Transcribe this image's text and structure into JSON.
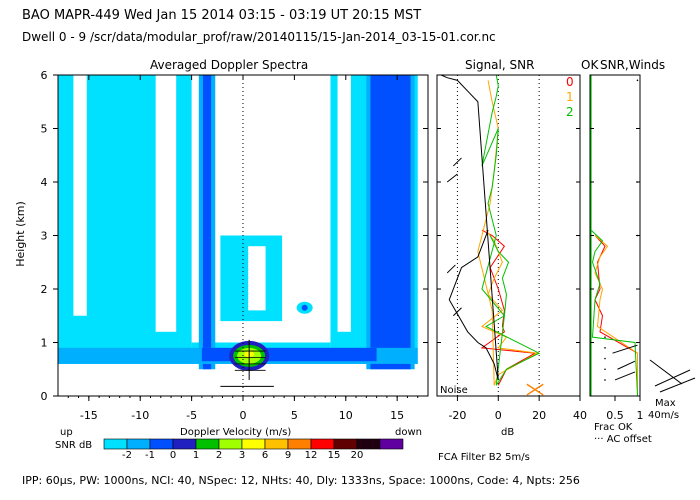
{
  "header": {
    "line1": "BAO  MAPR-449  Wed Jan 15 2014 03:15 - 03:19 UT 20:15 MST",
    "line2": "Dwell  0 - 9   /scr/data/modular_prof/raw/20140115/15-Jan-2014_03-15-01.cor.nc"
  },
  "footer": {
    "params": "IPP: 60μs,  PW: 1000ns,  NCI: 40,  NSpec: 12, NHts: 40,  Dly: 1333ns,  Space: 1000ns,  Code: 4,  Npts: 256"
  },
  "chart_data": [
    {
      "type": "heatmap",
      "title": "Averaged Doppler Spectra",
      "xlabel": "Doppler Velocity (m/s)",
      "ylabel": "Height (km)",
      "xlim": [
        -18,
        18
      ],
      "ylim": [
        0,
        6
      ],
      "xticks": [
        "-15",
        "-10",
        "-5",
        "0",
        "5",
        "10",
        "15"
      ],
      "yticks": [
        "0",
        "1",
        "2",
        "3",
        "4",
        "5",
        "6"
      ],
      "x_left_label": "up",
      "x_right_label": "down",
      "colorbar": {
        "label": "SNR dB",
        "labels": [
          "-2",
          "-1",
          "0",
          "1",
          "2",
          "3",
          "6",
          "9",
          "12",
          "15",
          "20"
        ],
        "colors": [
          "#00e0ff",
          "#00b0ff",
          "#0050ff",
          "#2020c0",
          "#00c000",
          "#a0ff00",
          "#ffff00",
          "#ffc000",
          "#ff8000",
          "#ff0000",
          "#600000",
          "#200010",
          "#6000a0"
        ]
      },
      "regions": [
        {
          "name": "clutter-band-left",
          "x0": -4.3,
          "x1": -2.7,
          "y0": 0.5,
          "y1": 6.0
        },
        {
          "name": "clutter-band-right",
          "x0": 12.0,
          "x1": 16.7,
          "y0": 0.5,
          "y1": 6.0
        },
        {
          "name": "low-level-echo",
          "x0": -18.0,
          "x1": 17.0,
          "y0": 0.6,
          "y1": 1.0
        },
        {
          "name": "peak-core",
          "x0": -1.2,
          "x1": 2.4,
          "y0": 0.5,
          "y1": 1.0
        }
      ]
    },
    {
      "type": "line",
      "title": "Signal, SNR",
      "xlabel": "dB",
      "xlim": [
        -30,
        40
      ],
      "ylim": [
        0,
        6
      ],
      "xticks": [
        "-20",
        "0",
        "20",
        "40"
      ],
      "noise_label": "Noise",
      "series": [
        {
          "name": "0",
          "color": "#ff0000",
          "x": [
            -8,
            -3,
            3,
            -4,
            0,
            3,
            2,
            3,
            -8,
            18,
            4,
            0
          ],
          "y": [
            3.1,
            3.0,
            2.8,
            2.4,
            2.0,
            1.6,
            1.3,
            1.2,
            0.9,
            0.8,
            0.5,
            0.2
          ]
        },
        {
          "name": "1",
          "color": "#ffa500",
          "x": [
            -6,
            -2,
            2,
            -2,
            -5,
            2,
            -8,
            4,
            0,
            19,
            0,
            -2,
            -3,
            -10,
            -4,
            -2,
            0,
            -3,
            -5
          ],
          "y": [
            3.1,
            2.9,
            2.5,
            2.2,
            1.9,
            1.6,
            1.3,
            1.1,
            0.9,
            0.8,
            0.4,
            0.2,
            1.6,
            2.7,
            3.6,
            4.2,
            5.0,
            5.5,
            5.9
          ]
        },
        {
          "name": "2",
          "color": "#00c000",
          "x": [
            -4,
            0,
            5,
            2,
            4,
            3,
            -6,
            20,
            4,
            -1,
            3,
            -8,
            -1,
            -5,
            -3,
            -1,
            0,
            -8,
            -3,
            -1,
            0,
            -1
          ],
          "y": [
            3.0,
            2.7,
            2.5,
            2.2,
            1.9,
            1.5,
            1.3,
            0.8,
            0.5,
            0.2,
            1.5,
            2.0,
            3.0,
            3.6,
            3.9,
            4.5,
            5.0,
            4.3,
            5.3,
            5.6,
            5.8,
            6.0
          ]
        },
        {
          "name": "signal",
          "color": "#000000",
          "x": [
            -5,
            -10,
            -18,
            -24,
            -15,
            -10,
            -6,
            -2,
            0,
            -10,
            -15,
            -20,
            -25,
            -28
          ],
          "y": [
            3.1,
            2.6,
            2.4,
            1.8,
            1.2,
            1.0,
            0.9,
            0.6,
            0.3,
            5.5,
            5.7,
            5.9,
            5.95,
            6.0
          ]
        }
      ]
    },
    {
      "type": "line",
      "title": "SNR,Winds",
      "ok_label": "OK",
      "xlabel": "Frac OK",
      "xlim": [
        0,
        1
      ],
      "ylim": [
        0,
        6
      ],
      "xticks": [
        "0.5",
        "1"
      ],
      "legend_note": "··· AC offset",
      "wind_scale_label": "Max",
      "wind_scale_value": "40m/s",
      "series": [
        {
          "name": "0",
          "color": "#ff0000",
          "x": [
            0.1,
            0.3,
            0.15,
            0.2,
            0.1,
            0.25,
            0.2,
            0.95,
            0.95
          ],
          "y": [
            3.0,
            2.8,
            2.5,
            2.0,
            1.8,
            1.5,
            1.2,
            0.8,
            0.0
          ]
        },
        {
          "name": "1",
          "color": "#ffa500",
          "x": [
            0.1,
            0.35,
            0.2,
            0.1,
            0.25,
            0.2,
            0.15,
            0.95,
            0.95
          ],
          "y": [
            3.0,
            2.8,
            2.6,
            2.3,
            2.0,
            1.8,
            1.3,
            0.8,
            0.0
          ]
        },
        {
          "name": "2",
          "color": "#00c000",
          "x": [
            0.02,
            0.25,
            0.1,
            0.05,
            0.2,
            0.1,
            0.05,
            0.9,
            0.95
          ],
          "y": [
            3.1,
            2.9,
            2.7,
            2.5,
            2.1,
            1.8,
            1.1,
            1.0,
            0.0
          ]
        }
      ]
    }
  ],
  "sub_labels": {
    "fca": "FCA Filter B2  5m/s",
    "series_0": "0",
    "series_1": "1",
    "series_2": "2"
  }
}
